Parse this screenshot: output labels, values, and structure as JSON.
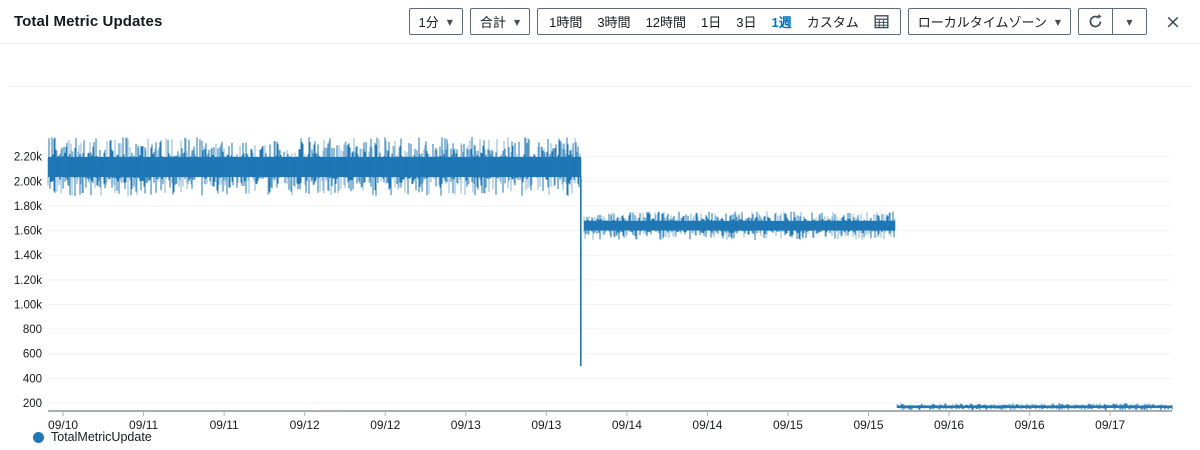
{
  "header": {
    "title": "Total Metric Updates",
    "period_label": "1分",
    "stat_label": "合計",
    "time_ranges": [
      {
        "label": "1時間",
        "active": false
      },
      {
        "label": "3時間",
        "active": false
      },
      {
        "label": "12時間",
        "active": false
      },
      {
        "label": "1日",
        "active": false
      },
      {
        "label": "3日",
        "active": false
      },
      {
        "label": "1週",
        "active": true
      },
      {
        "label": "カスタム",
        "active": false
      }
    ],
    "timezone_label": "ローカルタイムゾーン",
    "accent_blue": "#0073bb"
  },
  "icons": {
    "caret_down": "▼",
    "close": "×",
    "refresh": "circular-arrow",
    "calendar": "grid-table"
  },
  "legend": {
    "series_label": "TotalMetricUpdate",
    "color": "#1f77b4"
  },
  "chart_data": {
    "type": "area",
    "title": "Total Metric Updates",
    "period": "1分",
    "stat": "合計",
    "time_range": "1週",
    "series": [
      {
        "name": "TotalMetricUpdate",
        "color": "#1f77b4"
      }
    ],
    "x_tick_labels": [
      "09/10",
      "09/11",
      "09/11",
      "09/12",
      "09/12",
      "09/13",
      "09/13",
      "09/14",
      "09/14",
      "09/15",
      "09/15",
      "09/16",
      "09/16",
      "09/17"
    ],
    "x_tick_interval": "12h",
    "y_tick_labels": [
      "2.20k",
      "2.00k",
      "1.80k",
      "1.60k",
      "1.40k",
      "1.20k",
      "1.00k",
      "800",
      "600",
      "400",
      "200"
    ],
    "y_tick_values": [
      2200,
      2000,
      1800,
      1600,
      1400,
      1200,
      1000,
      800,
      600,
      400,
      200
    ],
    "ylim": [
      0,
      2700
    ],
    "grid": true,
    "legend_position": "bottom-left",
    "segments": [
      {
        "label": "09/10 – 09/13 noisy plateau",
        "start_frac": 0.0,
        "end_frac": 0.474,
        "mean": 2115,
        "min": 1880,
        "max": 2360
      },
      {
        "label": "09/13 – 09/15 plateau",
        "start_frac": 0.477,
        "end_frac": 0.754,
        "mean": 1640,
        "min": 1525,
        "max": 1755
      },
      {
        "label": "09/15 – 09/17 low plateau",
        "start_frac": 0.7555,
        "end_frac": 1.0,
        "mean": 170,
        "min": 140,
        "max": 198
      }
    ],
    "spike": {
      "frac": 0.474,
      "top": 2040,
      "bottom": 500
    },
    "x_tick_start_frac": 0.0134,
    "x_tick_step_frac": 0.07166,
    "colors": {
      "grid": "#f2f3f3",
      "axis": "#545b64",
      "tick": "#aab7b8",
      "label": "#16191f"
    }
  }
}
